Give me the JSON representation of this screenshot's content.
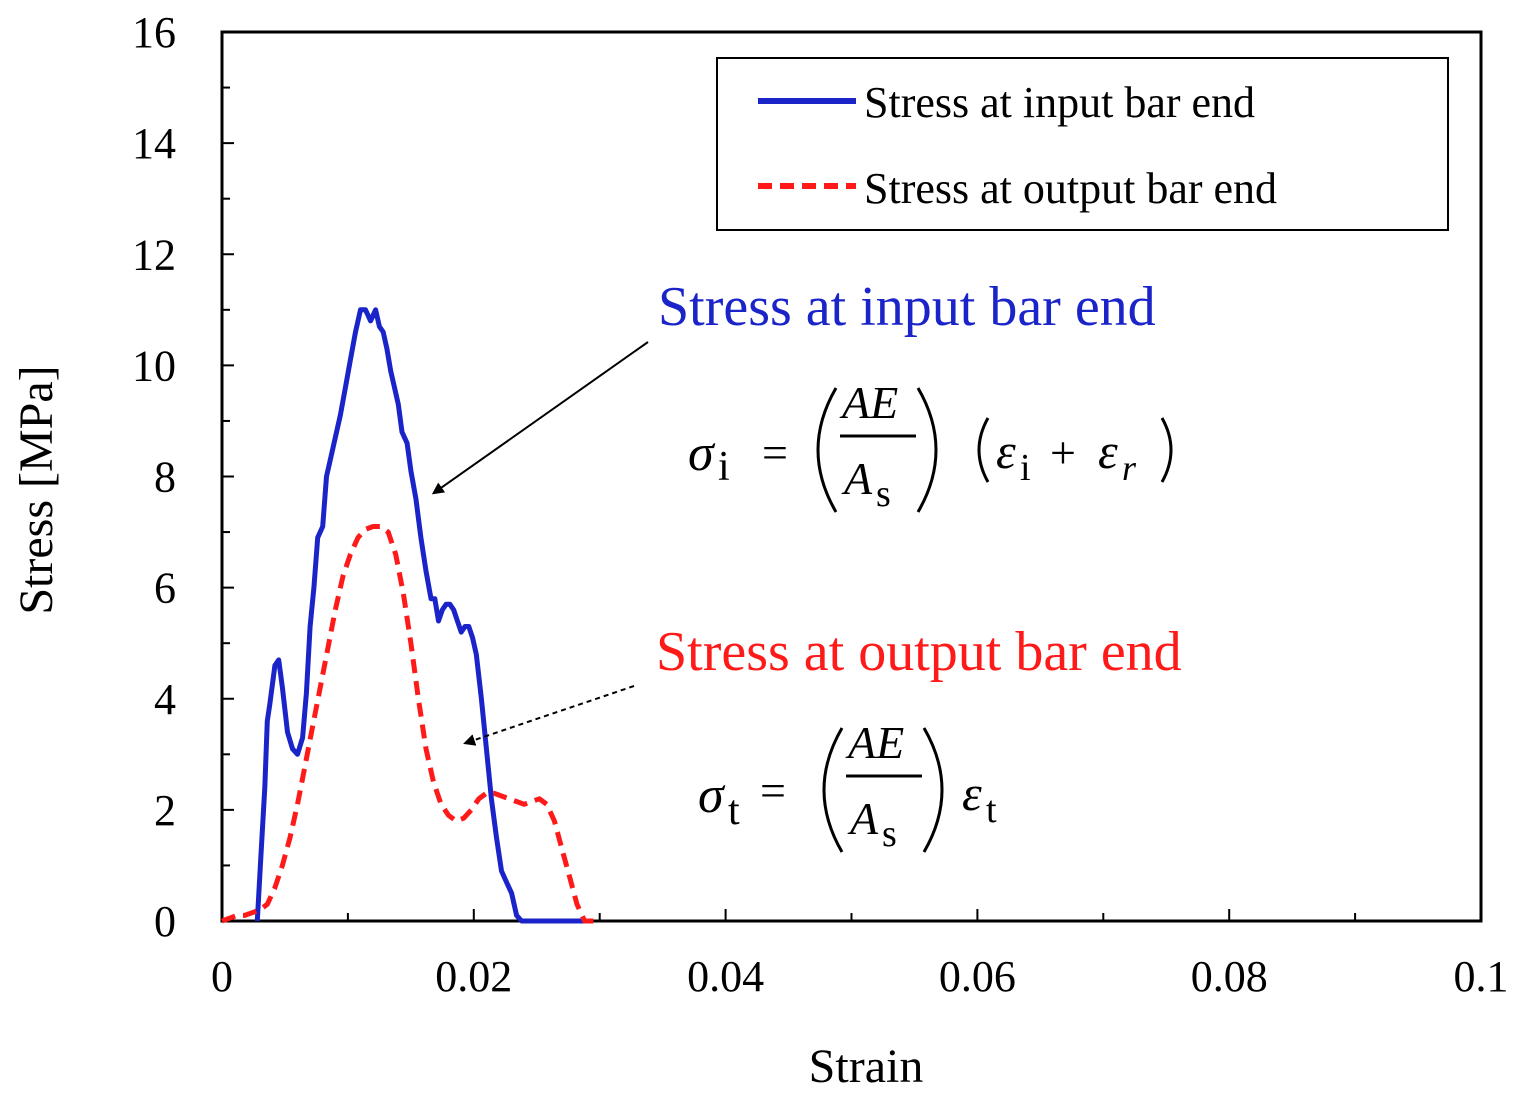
{
  "chart_data": {
    "type": "line",
    "title": "",
    "xlabel": "Strain",
    "ylabel": "Stress [MPa]",
    "xlim": [
      0,
      0.1
    ],
    "ylim": [
      0,
      16
    ],
    "xticks": [
      0,
      0.02,
      0.04,
      0.06,
      0.08,
      0.1
    ],
    "xtick_labels": [
      "0",
      "0.02",
      "0.04",
      "0.06",
      "0.08",
      "0.1"
    ],
    "yticks": [
      0,
      2,
      4,
      6,
      8,
      10,
      12,
      14,
      16
    ],
    "ytick_labels": [
      "0",
      "2",
      "4",
      "6",
      "8",
      "10",
      "12",
      "14",
      "16"
    ],
    "grid": false,
    "legend_position": "top-right",
    "series": [
      {
        "name": "Stress at input bar end",
        "color": "#1a24c8",
        "style": "solid",
        "x": [
          0.0028,
          0.0031,
          0.0034,
          0.0036,
          0.0038,
          0.0042,
          0.0045,
          0.0048,
          0.0052,
          0.0056,
          0.006,
          0.0064,
          0.0067,
          0.007,
          0.0073,
          0.0076,
          0.008,
          0.0083,
          0.0086,
          0.009,
          0.0094,
          0.0098,
          0.0102,
          0.0106,
          0.011,
          0.0114,
          0.0118,
          0.0122,
          0.0125,
          0.0128,
          0.0131,
          0.0134,
          0.0137,
          0.014,
          0.0143,
          0.0147,
          0.015,
          0.0154,
          0.0158,
          0.0162,
          0.0166,
          0.0169,
          0.0172,
          0.0175,
          0.0178,
          0.0181,
          0.0184,
          0.0187,
          0.019,
          0.0193,
          0.0196,
          0.0199,
          0.0202,
          0.0206,
          0.021,
          0.0214,
          0.0218,
          0.0222,
          0.0226,
          0.023,
          0.0234,
          0.0238,
          0.0242,
          0.0245,
          0.0248,
          0.0251,
          0.0254,
          0.0257,
          0.026,
          0.0264,
          0.0268,
          0.0272,
          0.0276,
          0.028,
          0.0284,
          0.0288,
          0.0292
        ],
        "y": [
          0.0,
          1.2,
          2.4,
          3.6,
          3.9,
          4.6,
          4.7,
          4.2,
          3.4,
          3.1,
          3.0,
          3.3,
          4.1,
          5.3,
          6.0,
          6.9,
          7.1,
          8.0,
          8.3,
          8.7,
          9.1,
          9.6,
          10.1,
          10.6,
          11.0,
          11.0,
          10.8,
          11.0,
          10.7,
          10.6,
          10.3,
          9.9,
          9.6,
          9.3,
          8.8,
          8.6,
          8.1,
          7.6,
          6.9,
          6.3,
          5.8,
          5.8,
          5.4,
          5.6,
          5.7,
          5.7,
          5.6,
          5.4,
          5.2,
          5.3,
          5.3,
          5.1,
          4.8,
          4.0,
          3.1,
          2.2,
          1.5,
          0.9,
          0.7,
          0.5,
          0.1,
          0.0,
          0.0,
          0.0,
          0.0,
          0.0,
          0.0,
          0.0,
          0.0,
          0.0,
          0.0,
          0.0,
          0.0,
          0.0,
          0.0,
          0.0,
          0.0
        ]
      },
      {
        "name": "Stress at output bar end",
        "color": "#ff1a1a",
        "style": "dashed",
        "x": [
          0.0,
          0.0006,
          0.0012,
          0.0018,
          0.0024,
          0.003,
          0.0036,
          0.0042,
          0.0048,
          0.0054,
          0.006,
          0.0066,
          0.0072,
          0.0078,
          0.0084,
          0.009,
          0.0096,
          0.0102,
          0.0108,
          0.0114,
          0.012,
          0.0126,
          0.0132,
          0.0138,
          0.0144,
          0.015,
          0.0156,
          0.0162,
          0.0168,
          0.0174,
          0.018,
          0.0186,
          0.0192,
          0.0198,
          0.0204,
          0.021,
          0.0216,
          0.0222,
          0.0228,
          0.0234,
          0.024,
          0.0246,
          0.0252,
          0.0258,
          0.0264,
          0.027,
          0.0276,
          0.0282,
          0.0288,
          0.0294,
          0.0297
        ],
        "y": [
          0.0,
          0.05,
          0.1,
          0.1,
          0.15,
          0.2,
          0.3,
          0.6,
          1.0,
          1.5,
          2.1,
          2.8,
          3.5,
          4.2,
          4.9,
          5.6,
          6.2,
          6.6,
          6.9,
          7.05,
          7.1,
          7.1,
          7.0,
          6.6,
          5.9,
          5.0,
          4.0,
          3.1,
          2.5,
          2.1,
          1.9,
          1.8,
          1.85,
          2.0,
          2.2,
          2.3,
          2.3,
          2.25,
          2.2,
          2.15,
          2.1,
          2.15,
          2.2,
          2.1,
          1.8,
          1.3,
          0.8,
          0.3,
          0.0,
          0.0,
          0.0
        ]
      }
    ],
    "legend": [
      "Stress at input bar end",
      "Stress at output bar end"
    ],
    "annotations": [
      {
        "text": "Stress at input bar end",
        "color": "#1a24c8",
        "arrow_to": [
          0.0168,
          7.7
        ],
        "arrow_style": "solid"
      },
      {
        "text": "Stress at output bar end",
        "color": "#ff1a1a",
        "arrow_to": [
          0.0193,
          3.2
        ],
        "arrow_style": "dashed"
      }
    ],
    "equations": {
      "input": {
        "lhs_symbol": "σ",
        "lhs_sub": "i",
        "num": "AE",
        "den_symbol": "A",
        "den_sub": "s",
        "term1": "ε",
        "term1_sub": "i",
        "plus": "+",
        "term2": "ε",
        "term2_sub": "r"
      },
      "output": {
        "lhs_symbol": "σ",
        "lhs_sub": "t",
        "num": "AE",
        "den_symbol": "A",
        "den_sub": "s",
        "term": "ε",
        "term_sub": "t"
      }
    }
  }
}
